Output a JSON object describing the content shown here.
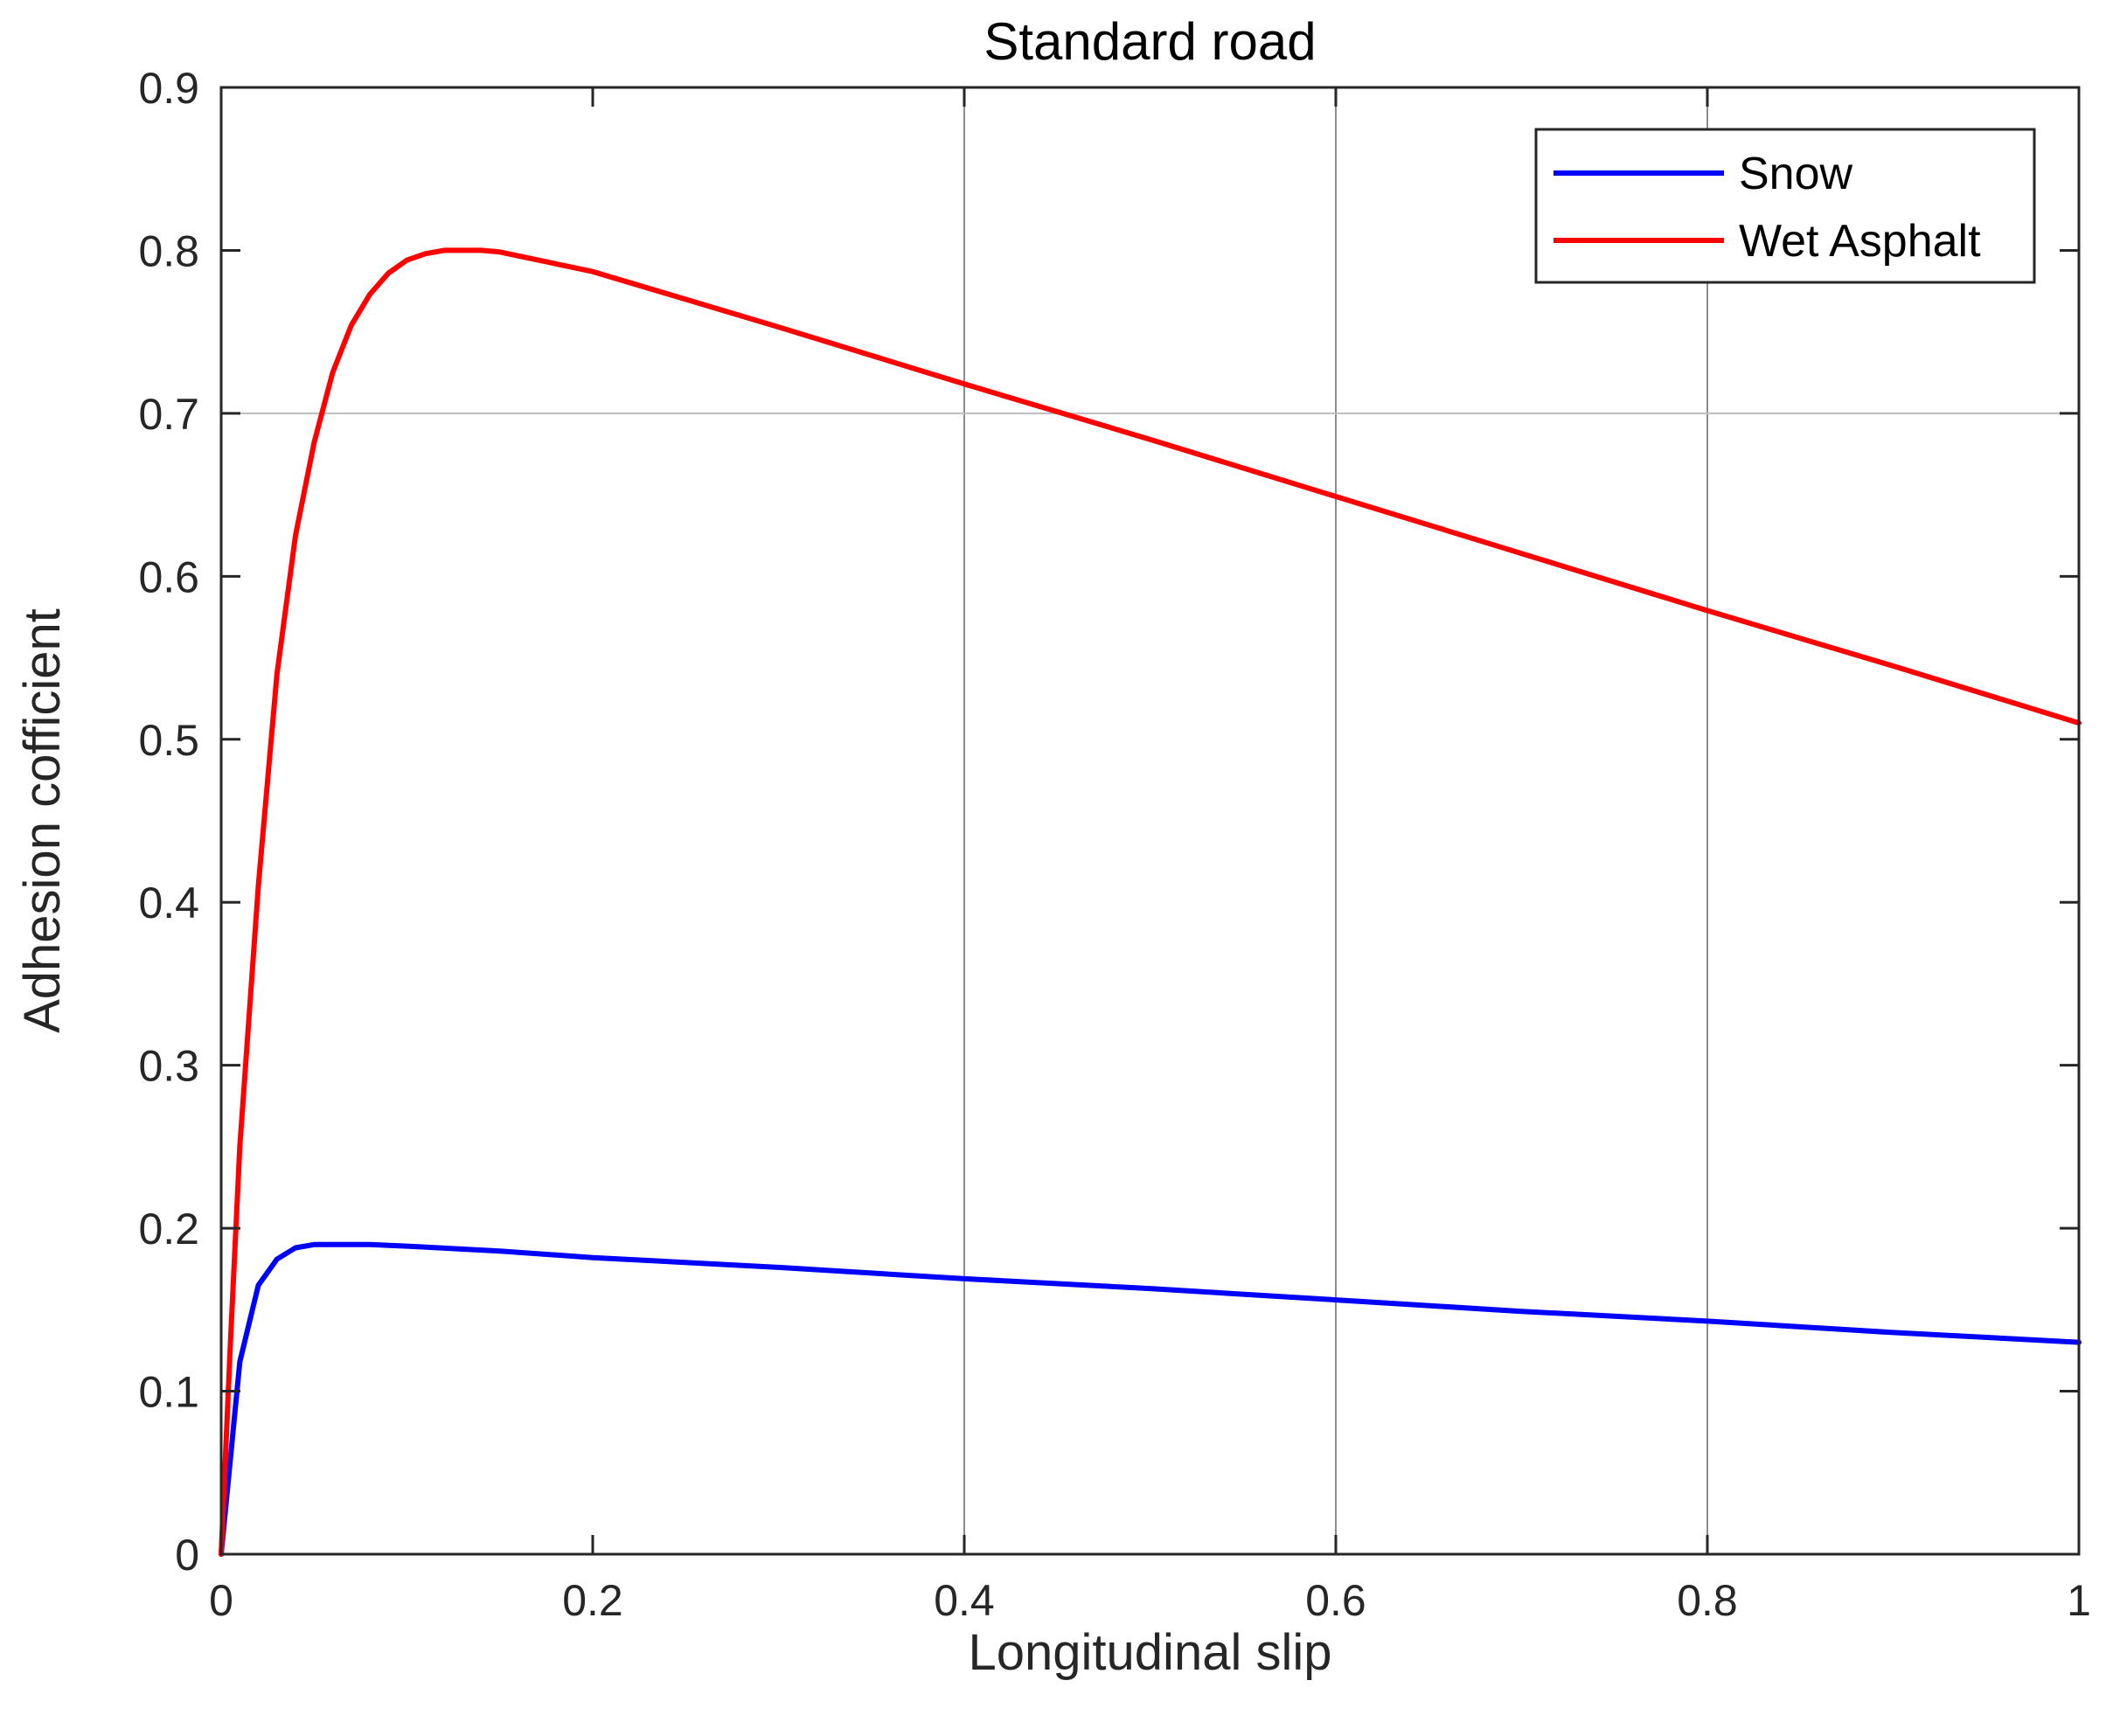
{
  "chart_data": {
    "type": "line",
    "title": "Standard road",
    "xlabel": "Longitudinal slip",
    "ylabel": "Adhesion cofficient",
    "xlim": [
      0,
      1
    ],
    "ylim": [
      0,
      0.9
    ],
    "xticks": [
      0,
      0.2,
      0.4,
      0.6,
      0.8,
      1
    ],
    "xtick_labels": [
      "0",
      "0.2",
      "0.4",
      "0.6",
      "0.8",
      "1"
    ],
    "yticks": [
      0,
      0.1,
      0.2,
      0.3,
      0.4,
      0.5,
      0.6,
      0.7,
      0.8,
      0.9
    ],
    "ytick_labels": [
      "0",
      "0.1",
      "0.2",
      "0.3",
      "0.4",
      "0.5",
      "0.6",
      "0.7",
      "0.8",
      "0.9"
    ],
    "grid_x_at": [
      0.4,
      0.6,
      0.8
    ],
    "grid_y_at": [
      0.7
    ],
    "legend_position": "top-right",
    "series": [
      {
        "name": "Snow",
        "color": "#0000ff",
        "x": [
          0,
          0.01,
          0.02,
          0.03,
          0.04,
          0.05,
          0.06,
          0.07,
          0.08,
          0.1,
          0.15,
          0.2,
          0.3,
          0.4,
          0.5,
          0.6,
          0.7,
          0.8,
          0.9,
          1.0
        ],
        "y": [
          0,
          0.118,
          0.165,
          0.181,
          0.188,
          0.19,
          0.19,
          0.19,
          0.19,
          0.189,
          0.186,
          0.182,
          0.176,
          0.169,
          0.163,
          0.156,
          0.149,
          0.143,
          0.136,
          0.13
        ]
      },
      {
        "name": "Wet Asphalt",
        "color": "#ff0000",
        "x": [
          0,
          0.005,
          0.01,
          0.02,
          0.03,
          0.04,
          0.05,
          0.06,
          0.07,
          0.08,
          0.09,
          0.1,
          0.11,
          0.12,
          0.13,
          0.14,
          0.15,
          0.2,
          0.3,
          0.4,
          0.5,
          0.6,
          0.7,
          0.8,
          0.9,
          1.0
        ],
        "y": [
          0,
          0.13,
          0.25,
          0.41,
          0.54,
          0.625,
          0.682,
          0.725,
          0.754,
          0.773,
          0.786,
          0.794,
          0.798,
          0.8,
          0.8,
          0.8,
          0.799,
          0.787,
          0.753,
          0.718,
          0.684,
          0.649,
          0.614,
          0.579,
          0.545,
          0.51
        ]
      }
    ]
  }
}
